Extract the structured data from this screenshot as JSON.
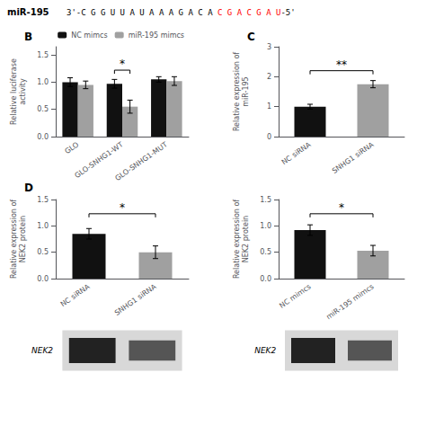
{
  "chart_data": [
    {
      "type": "bar",
      "title": "B",
      "categories": [
        "GLO",
        "GLO-SNHG1-WT",
        "GLO-SNHG1-MUT"
      ],
      "series": [
        {
          "name": "NC mimcs",
          "color": "#111111",
          "values": [
            1.0,
            0.97,
            1.05
          ],
          "errors": [
            0.08,
            0.08,
            0.05
          ]
        },
        {
          "name": "miR-195 mimcs",
          "color": "#a0a0a0",
          "values": [
            0.95,
            0.55,
            1.02
          ],
          "errors": [
            0.07,
            0.12,
            0.08
          ]
        }
      ],
      "ylabel": "Relative luciferase\nactivity",
      "ylim": [
        0,
        1.65
      ],
      "yticks": [
        {
          "value": 0,
          "label": "0.0"
        },
        0.5,
        {
          "value": 1,
          "label": "1.0"
        },
        1.5
      ],
      "legend": "upper right",
      "grid": false,
      "annotations": [
        {
          "text": "miR-195",
          "color": "black"
        },
        {
          "text": "3'-C G G U U A U A A A G A C A ",
          "color": "black"
        },
        {
          "text": "C G A C G A U",
          "color": "red"
        },
        {
          "text": "-5'",
          "color": "black"
        },
        {
          "text": "*",
          "x": "GLO-SNHG1-WT",
          "y": 1.22
        }
      ]
    },
    {
      "type": "bar",
      "title": "C",
      "categories": [
        "NC siRNA",
        "SNHG1 siRNA"
      ],
      "values": [
        1.0,
        1.75
      ],
      "errors": [
        0.08,
        0.12
      ],
      "colors": [
        "#111111",
        "#a0a0a0"
      ],
      "ylabel": "Relative expression of\nmiR-195",
      "ylim": [
        0,
        3.0
      ],
      "yticks": [
        0,
        1,
        2,
        3
      ],
      "grid": false,
      "annotations": [
        {
          "text": "**",
          "x": [
            "NC siRNA",
            "SNHG1 siRNA"
          ],
          "y": 2.2
        }
      ]
    },
    {
      "type": "bar",
      "title": "D",
      "categories": [
        "NC siRNA",
        "SNHG1 siRNA"
      ],
      "values": [
        0.85,
        0.5
      ],
      "errors": [
        0.1,
        0.12
      ],
      "colors": [
        "#111111",
        "#a0a0a0"
      ],
      "ylabel": "Relative expression of\nNEK2 protein",
      "ylim": [
        0,
        1.5
      ],
      "yticks": [
        {
          "value": 0,
          "label": "0.0"
        },
        0.5,
        {
          "value": 1,
          "label": "1.0"
        },
        1.5
      ],
      "grid": false,
      "annotations": [
        {
          "text": "*",
          "x": [
            "NC siRNA",
            "SNHG1 siRNA"
          ],
          "y": 1.23
        },
        {
          "text": "NEK2"
        }
      ]
    },
    {
      "type": "bar",
      "categories": [
        "NC mimcs",
        "miR-195 mimcs"
      ],
      "values": [
        0.92,
        0.53
      ],
      "errors": [
        0.1,
        0.1
      ],
      "colors": [
        "#111111",
        "#a0a0a0"
      ],
      "ylabel": "Relative expression of\nNEK2 protein",
      "ylim": [
        0,
        1.5
      ],
      "yticks": [
        {
          "value": 0,
          "label": "0.0"
        },
        0.5,
        {
          "value": 1,
          "label": "1.0"
        },
        1.5
      ],
      "grid": false,
      "annotations": [
        {
          "text": "*",
          "x": [
            "NC mimcs",
            "miR-195 mimcs"
          ],
          "y": 1.23
        },
        {
          "text": "NEK2"
        }
      ]
    }
  ]
}
